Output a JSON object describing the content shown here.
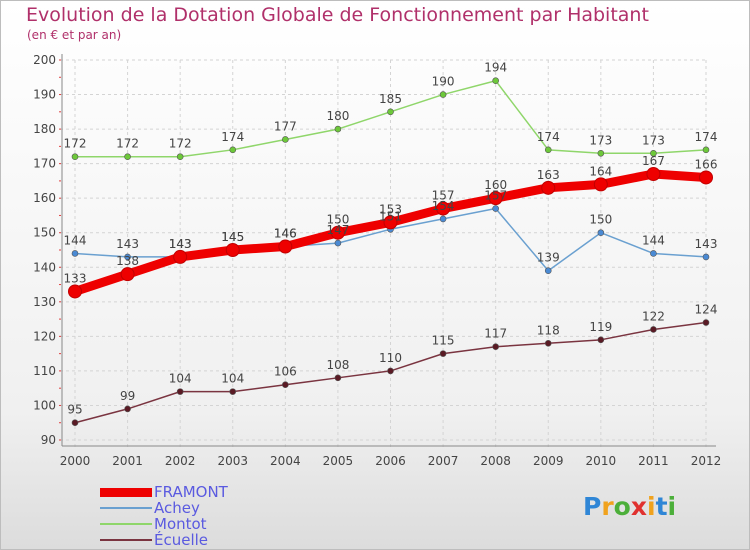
{
  "header": {
    "title": "Evolution de la Dotation Globale de Fonctionnement par Habitant",
    "subtitle": "(en € et par an)"
  },
  "logo": {
    "letters": [
      "P",
      "r",
      "o",
      "x",
      "i",
      "t",
      "i"
    ],
    "colors": [
      "#2f86d6",
      "#f0a21d",
      "#4caf3a",
      "#e0312f",
      "#f0a21d",
      "#2f86d6",
      "#4caf3a"
    ]
  },
  "chart_data": {
    "type": "line",
    "title": "Evolution de la Dotation Globale de Fonctionnement par Habitant",
    "subtitle": "(en € et par an)",
    "xlabel": "",
    "ylabel": "",
    "categories": [
      "2000",
      "2001",
      "2002",
      "2003",
      "2004",
      "2005",
      "2006",
      "2007",
      "2008",
      "2009",
      "2010",
      "2011",
      "2012"
    ],
    "ylim": [
      90,
      200
    ],
    "yticks": [
      90,
      100,
      110,
      120,
      130,
      140,
      150,
      160,
      170,
      180,
      190,
      200
    ],
    "grid": true,
    "legend_position": "bottom-left",
    "series": [
      {
        "name": "FRAMONT",
        "color": "#ee0000",
        "marker": "#ee0000",
        "emphasis": true,
        "values": [
          133,
          138,
          143,
          145,
          146,
          150,
          153,
          157,
          160,
          163,
          164,
          167,
          166
        ]
      },
      {
        "name": "Achey",
        "color": "#6aa0d0",
        "marker": "#4a8ad4",
        "values": [
          144,
          143,
          143,
          145,
          146,
          147,
          151,
          154,
          157,
          139,
          150,
          144,
          143
        ]
      },
      {
        "name": "Montot",
        "color": "#8fd66a",
        "marker": "#6dc83a",
        "values": [
          172,
          172,
          172,
          174,
          177,
          180,
          185,
          190,
          194,
          174,
          173,
          173,
          174
        ]
      },
      {
        "name": "Écuelle",
        "color": "#7a3440",
        "marker": "#5a1a24",
        "values": [
          95,
          99,
          104,
          104,
          106,
          108,
          110,
          115,
          117,
          118,
          119,
          122,
          124
        ]
      }
    ],
    "data_labels": [
      [
        "133",
        "138",
        "143",
        "145",
        "146",
        "150",
        "153",
        "157",
        "160",
        "163",
        "164",
        "167",
        "166"
      ],
      [
        "144",
        "143",
        "143",
        "145",
        "146",
        "147",
        "151",
        "154",
        "157",
        "139",
        "150",
        "144",
        "143"
      ],
      [
        "172",
        "172",
        "172",
        "174",
        "177",
        "180",
        "185",
        "190",
        "194",
        "174",
        "173",
        "173",
        "174"
      ],
      [
        "95",
        "99",
        "104",
        "104",
        "106",
        "108",
        "110",
        "115",
        "117",
        "118",
        "119",
        "122",
        "124"
      ]
    ]
  }
}
